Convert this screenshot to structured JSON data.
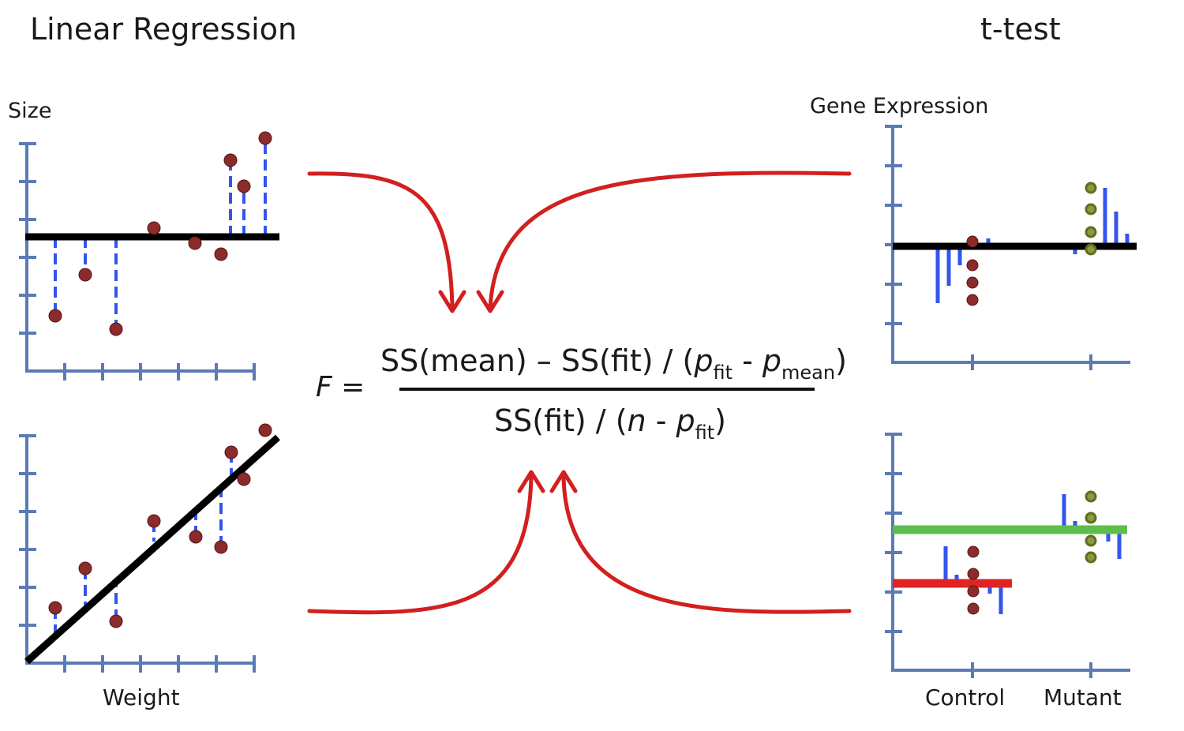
{
  "titles": {
    "left": "Linear Regression",
    "right": "t-test"
  },
  "axis_labels": {
    "size": "Size",
    "weight": "Weight",
    "gene_expression": "Gene Expression",
    "control": "Control",
    "mutant": "Mutant"
  },
  "formula": {
    "lhs": "F =",
    "numerator": {
      "part1": "SS(mean) – SS(fit) / (",
      "p1": "p",
      "sub1": "fit",
      "dash": " - ",
      "p2": "p",
      "sub2": "mean",
      "close": ")"
    },
    "denominator": {
      "part1": "SS(fit) / (",
      "n": "n",
      "dash": " - ",
      "p": "p",
      "sub": "fit",
      "close": ")"
    }
  },
  "colors": {
    "axis": "#5b7bb5",
    "residual": "#3355ee",
    "point_red": "#8b2b2b",
    "point_green": "#8a9b3e",
    "fit_line": "#000000",
    "arrow": "#d21f1f",
    "control_mean": "#e02424",
    "mutant_mean": "#5cbf4a"
  }
}
